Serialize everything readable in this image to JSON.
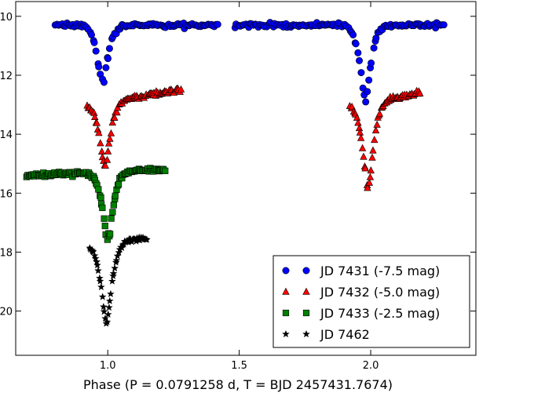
{
  "chart_data": {
    "type": "scatter",
    "title": "",
    "xlabel": "Phase (P = 0.0791258 d, T = BJD 2457431.7674)",
    "ylabel": "",
    "xlim": [
      0.65,
      2.4
    ],
    "ylim": [
      21.5,
      9.5
    ],
    "y_inverted": true,
    "grid": false,
    "legend_position": "bottom-right",
    "x_ticks": [
      1.0,
      1.5,
      2.0
    ],
    "x_tick_labels": [
      "1.0",
      "1.5",
      "2.0"
    ],
    "y_ticks": [
      10,
      12,
      14,
      16,
      18,
      20
    ],
    "y_tick_labels": [
      "10",
      "12",
      "14",
      "16",
      "18",
      "20"
    ],
    "series": [
      {
        "name": "JD 7431 (-7.5 mag)",
        "marker": "circle",
        "color": "#0000ff",
        "segments": [
          [
            0.8,
            1.42
          ],
          [
            1.48,
            2.28
          ]
        ],
        "baseline": 10.3,
        "rise_per_phase": 0.0,
        "eclipses": [
          {
            "center": 0.98,
            "depth": 2.0
          },
          {
            "center": 1.98,
            "depth": 2.6
          }
        ],
        "sigma": 0.035,
        "n": 240
      },
      {
        "name": "JD 7432 (-5.0 mag)",
        "marker": "triangle",
        "color": "#ff0000",
        "segments": [
          [
            0.92,
            1.28
          ],
          [
            1.92,
            2.19
          ]
        ],
        "baseline": 13.0,
        "rise_per_phase": 1.4,
        "eclipses": [
          {
            "center": 0.99,
            "depth": 2.3
          },
          {
            "center": 1.99,
            "depth": 3.0
          }
        ],
        "sigma": 0.035,
        "n": 150
      },
      {
        "name": "JD 7433 (-2.5 mag)",
        "marker": "square",
        "color": "#008000",
        "segments": [
          [
            0.69,
            1.22
          ]
        ],
        "baseline": 15.4,
        "rise_per_phase": 0.4,
        "eclipses": [
          {
            "center": 1.0,
            "depth": 2.3
          }
        ],
        "sigma": 0.035,
        "n": 130
      },
      {
        "name": "JD 7462",
        "marker": "star",
        "color": "#000000",
        "segments": [
          [
            0.93,
            1.15
          ]
        ],
        "baseline": 17.75,
        "rise_per_phase": 1.0,
        "eclipses": [
          {
            "center": 0.995,
            "depth": 2.8
          }
        ],
        "sigma": 0.03,
        "n": 60
      }
    ]
  }
}
